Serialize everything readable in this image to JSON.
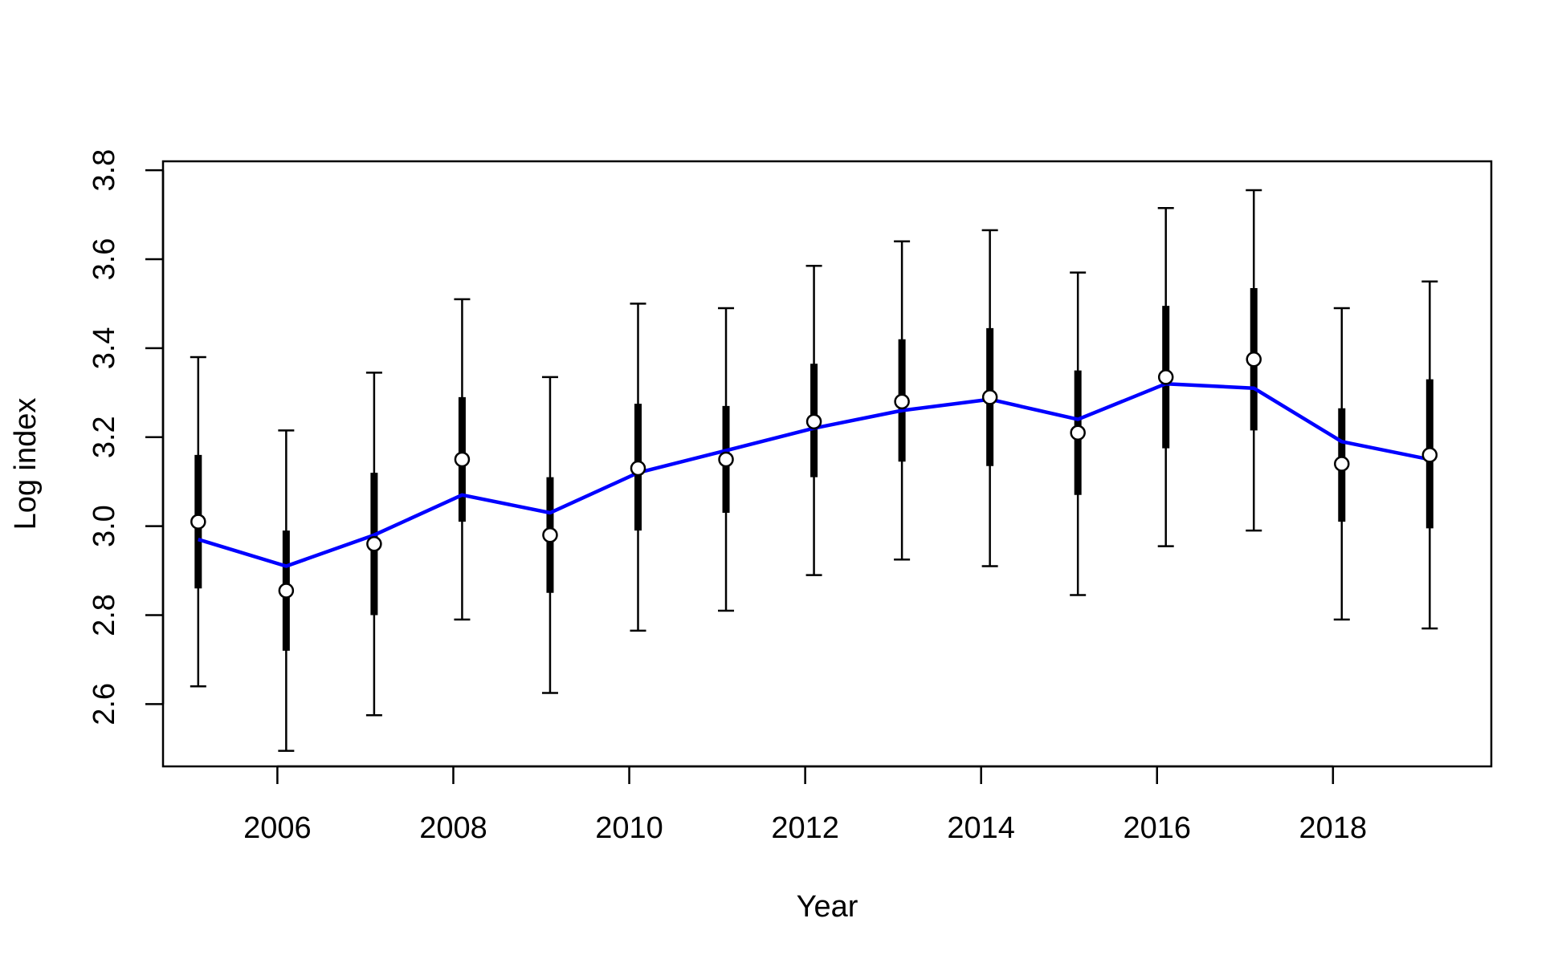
{
  "chart_data": {
    "type": "line",
    "xlabel": "Year",
    "ylabel": "Log index",
    "xlim": [
      2004.7,
      2019.8
    ],
    "ylim": [
      2.46,
      3.82
    ],
    "xticks": [
      2006,
      2008,
      2010,
      2012,
      2014,
      2016,
      2018
    ],
    "xtick_labels": [
      "2006",
      "2008",
      "2010",
      "2012",
      "2014",
      "2016",
      "2018"
    ],
    "yticks": [
      2.6,
      2.8,
      3.0,
      3.2,
      3.4,
      3.6,
      3.8
    ],
    "ytick_labels": [
      "2.6",
      "2.8",
      "3.0",
      "3.2",
      "3.4",
      "3.6",
      "3.8"
    ],
    "grid": false,
    "colors": {
      "fitted": "#0000ff",
      "observed_fill": "#ffffff",
      "error_bars": "#000000",
      "axes": "#000000"
    },
    "x": [
      2005,
      2006,
      2007,
      2008,
      2009,
      2010,
      2011,
      2012,
      2013,
      2014,
      2015,
      2016,
      2017,
      2018,
      2019
    ],
    "series": [
      {
        "role": "observed",
        "style": "open-circle-points",
        "x_offset": 0.1,
        "values": [
          3.01,
          2.855,
          2.96,
          3.15,
          2.98,
          3.13,
          3.15,
          3.235,
          3.28,
          3.29,
          3.21,
          3.335,
          3.375,
          3.14,
          3.16
        ],
        "inner_interval": {
          "low": [
            2.86,
            2.72,
            2.8,
            3.01,
            2.85,
            2.99,
            3.03,
            3.11,
            3.145,
            3.135,
            3.07,
            3.175,
            3.215,
            3.01,
            2.995
          ],
          "high": [
            3.16,
            2.99,
            3.12,
            3.29,
            3.11,
            3.275,
            3.27,
            3.365,
            3.42,
            3.445,
            3.35,
            3.495,
            3.535,
            3.265,
            3.33
          ]
        },
        "outer_interval": {
          "low": [
            2.64,
            2.495,
            2.575,
            2.79,
            2.625,
            2.765,
            2.81,
            2.89,
            2.925,
            2.91,
            2.845,
            2.955,
            2.99,
            2.79,
            2.77
          ],
          "high": [
            3.38,
            3.215,
            3.345,
            3.51,
            3.335,
            3.5,
            3.49,
            3.585,
            3.64,
            3.665,
            3.57,
            3.715,
            3.755,
            3.49,
            3.55
          ]
        }
      },
      {
        "role": "fitted",
        "style": "line",
        "x_offset": 0.1,
        "values": [
          2.97,
          2.91,
          2.98,
          3.07,
          3.03,
          3.12,
          3.17,
          3.22,
          3.26,
          3.285,
          3.24,
          3.32,
          3.31,
          3.19,
          3.15
        ]
      }
    ]
  }
}
